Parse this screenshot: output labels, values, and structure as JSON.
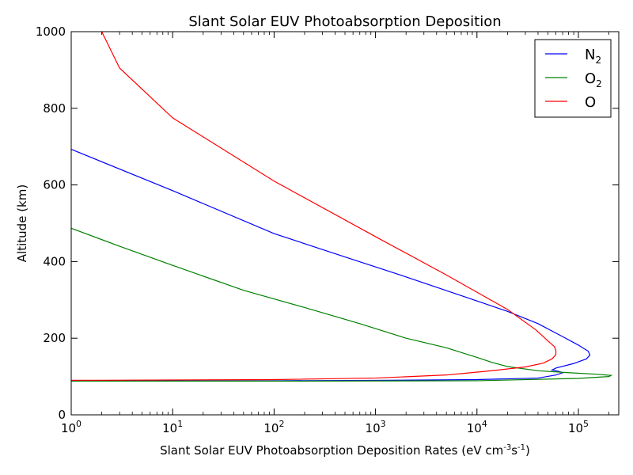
{
  "chart_data": {
    "type": "line",
    "title": "Slant Solar EUV Photoabsorption Deposition",
    "xlabel": "Slant Solar EUV Photoabsorption Deposition Rates (eV cm",
    "xlabel_sup1": "-3",
    "xlabel_mid": "s",
    "xlabel_sup2": "-1",
    "xlabel_end": ")",
    "ylabel": "Altitude (km)",
    "xscale": "log",
    "xlim": [
      1,
      250000
    ],
    "ylim": [
      0,
      1000
    ],
    "x_ticks": [
      {
        "value": 1,
        "base": "10",
        "exp": "0"
      },
      {
        "value": 10,
        "base": "10",
        "exp": "1"
      },
      {
        "value": 100,
        "base": "10",
        "exp": "2"
      },
      {
        "value": 1000,
        "base": "10",
        "exp": "3"
      },
      {
        "value": 10000,
        "base": "10",
        "exp": "4"
      },
      {
        "value": 100000,
        "base": "10",
        "exp": "5"
      }
    ],
    "y_ticks": [
      0,
      200,
      400,
      600,
      800,
      1000
    ],
    "y_tick_labels": [
      "0",
      "200",
      "400",
      "600",
      "800",
      "1000"
    ],
    "grid": false,
    "legend_position": "top-right",
    "series": [
      {
        "name": "N",
        "name_sub": "2",
        "color": "#0000ff",
        "points": [
          [
            1,
            90
          ],
          [
            10,
            89
          ],
          [
            100,
            89
          ],
          [
            1000,
            90
          ],
          [
            10000,
            92
          ],
          [
            40000,
            96
          ],
          [
            60000,
            104
          ],
          [
            70000,
            110
          ],
          [
            65000,
            113
          ],
          [
            55000,
            117
          ],
          [
            60000,
            122
          ],
          [
            90000,
            134
          ],
          [
            120000,
            146
          ],
          [
            130000,
            156
          ],
          [
            125000,
            166
          ],
          [
            100000,
            182
          ],
          [
            70000,
            204
          ],
          [
            40000,
            238
          ],
          [
            20000,
            270
          ],
          [
            8000,
            306
          ],
          [
            2000,
            360
          ],
          [
            500,
            412
          ],
          [
            100,
            473
          ],
          [
            10,
            585
          ],
          [
            1,
            693
          ]
        ]
      },
      {
        "name": "O",
        "name_sub": "2",
        "color": "#008000",
        "points": [
          [
            1,
            88
          ],
          [
            100,
            88
          ],
          [
            10000,
            89
          ],
          [
            100000,
            95
          ],
          [
            200000,
            100
          ],
          [
            210000,
            103
          ],
          [
            150000,
            106
          ],
          [
            80000,
            110
          ],
          [
            40000,
            115
          ],
          [
            20000,
            126
          ],
          [
            14000,
            137
          ],
          [
            10000,
            150
          ],
          [
            8000,
            158
          ],
          [
            5000,
            175
          ],
          [
            2000,
            200
          ],
          [
            700,
            238
          ],
          [
            200,
            280
          ],
          [
            50,
            325
          ],
          [
            10,
            390
          ],
          [
            3,
            440
          ],
          [
            1,
            487
          ]
        ]
      },
      {
        "name": "O",
        "name_sub": "",
        "color": "#ff0000",
        "points": [
          [
            1,
            90
          ],
          [
            100,
            92
          ],
          [
            1000,
            96
          ],
          [
            5000,
            104
          ],
          [
            8000,
            109
          ],
          [
            15000,
            116
          ],
          [
            30000,
            125
          ],
          [
            45000,
            135
          ],
          [
            55000,
            146
          ],
          [
            60000,
            157
          ],
          [
            60000,
            168
          ],
          [
            58000,
            178
          ],
          [
            50000,
            193
          ],
          [
            38000,
            222
          ],
          [
            20000,
            275
          ],
          [
            10000,
            320
          ],
          [
            5000,
            365
          ],
          [
            1000,
            465
          ],
          [
            100,
            610
          ],
          [
            10,
            775
          ],
          [
            3,
            905
          ],
          [
            2,
            1000
          ]
        ]
      }
    ]
  }
}
